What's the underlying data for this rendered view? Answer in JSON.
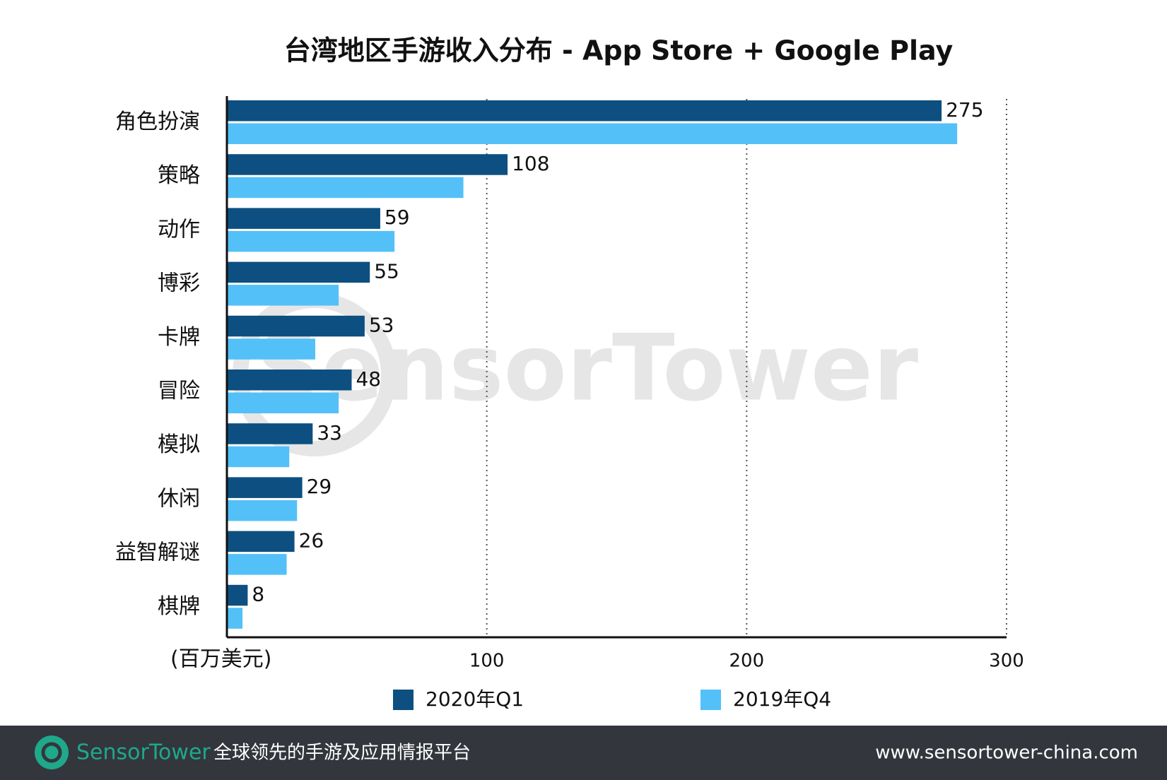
{
  "chart_data": {
    "type": "hbar",
    "title": "台湾地区手游收入分布 - App Store + Google Play",
    "categories": [
      "角色扮演",
      "策略",
      "动作",
      "博彩",
      "卡牌",
      "冒险",
      "模拟",
      "休闲",
      "益智解谜",
      "棋牌"
    ],
    "series": [
      {
        "name": "2020年Q1",
        "color": "#0d4f80",
        "values": [
          275,
          108,
          59,
          55,
          53,
          48,
          33,
          29,
          26,
          8
        ]
      },
      {
        "name": "2019年Q4",
        "color": "#54c0f8",
        "values": [
          281,
          91,
          64.5,
          43,
          34,
          43,
          24,
          27,
          23,
          6
        ]
      }
    ],
    "xlabel": "(百万美元)",
    "xlim": [
      0,
      300
    ],
    "xticks": [
      100,
      200,
      300
    ],
    "grid": true,
    "legend": "bottom"
  },
  "watermark": "SensorTower",
  "footer": {
    "brand": "SensorTower",
    "tagline": "全球领先的手游及应用情报平台",
    "url": "www.sensortower-china.com"
  }
}
